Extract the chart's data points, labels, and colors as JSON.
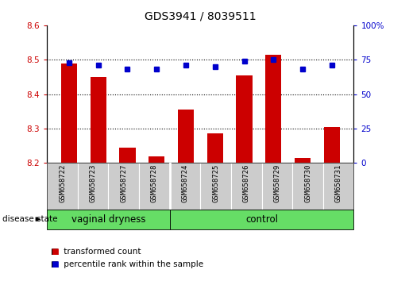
{
  "title": "GDS3941 / 8039511",
  "samples": [
    "GSM658722",
    "GSM658723",
    "GSM658727",
    "GSM658728",
    "GSM658724",
    "GSM658725",
    "GSM658726",
    "GSM658729",
    "GSM658730",
    "GSM658731"
  ],
  "bar_values": [
    8.49,
    8.45,
    8.245,
    8.22,
    8.355,
    8.285,
    8.455,
    8.515,
    8.215,
    8.305
  ],
  "dot_values": [
    73,
    71,
    68,
    68,
    71,
    70,
    74,
    75,
    68,
    71
  ],
  "bar_bottom": 8.2,
  "ylim_left": [
    8.2,
    8.6
  ],
  "ylim_right": [
    0,
    100
  ],
  "yticks_left": [
    8.2,
    8.3,
    8.4,
    8.5,
    8.6
  ],
  "yticks_right": [
    0,
    25,
    50,
    75,
    100
  ],
  "ytick_labels_right": [
    "0",
    "25",
    "50",
    "75",
    "100%"
  ],
  "bar_color": "#cc0000",
  "dot_color": "#0000cc",
  "group1_label": "vaginal dryness",
  "group2_label": "control",
  "group1_count": 4,
  "group2_count": 6,
  "group_bg_color": "#66dd66",
  "sample_bg_color": "#cccccc",
  "legend_bar_label": "transformed count",
  "legend_dot_label": "percentile rank within the sample",
  "disease_state_label": "disease state",
  "grid_color": "#000000",
  "title_fontsize": 10,
  "tick_fontsize": 7.5,
  "label_fontsize": 8,
  "sample_fontsize": 6.5,
  "group_fontsize": 8.5
}
